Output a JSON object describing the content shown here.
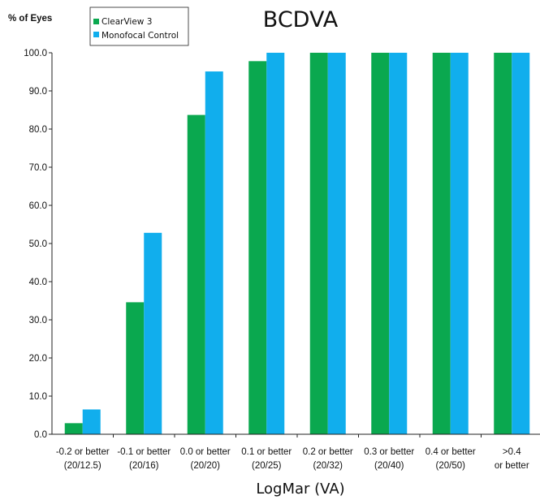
{
  "chart_data": {
    "type": "bar",
    "title": "BCDVA",
    "ylabel": "% of Eyes",
    "xlabel": "LogMar (VA)",
    "categories": [
      [
        "-0.2 or better",
        "(20/12.5)"
      ],
      [
        "-0.1 or better",
        "(20/16)"
      ],
      [
        "0.0 or better",
        "(20/20)"
      ],
      [
        "0.1 or better",
        "(20/25)"
      ],
      [
        "0.2 or better",
        "(20/32)"
      ],
      [
        "0.3 or better",
        "(20/40)"
      ],
      [
        "0.4 or better",
        "(20/50)"
      ],
      [
        ">0.4",
        "or better"
      ]
    ],
    "series": [
      {
        "name": "ClearView 3",
        "color": "#0aa84f",
        "values": [
          2.9,
          34.6,
          83.7,
          97.8,
          100.0,
          100.0,
          100.0,
          100.0
        ]
      },
      {
        "name": "Monofocal Control",
        "color": "#11aeed",
        "values": [
          6.5,
          52.8,
          95.1,
          100.0,
          100.0,
          100.0,
          100.0,
          100.0
        ]
      }
    ],
    "ylim": [
      0,
      100
    ],
    "yticks": [
      "0.0",
      "10.0",
      "20.0",
      "30.0",
      "40.0",
      "50.0",
      "60.0",
      "70.0",
      "80.0",
      "90.0",
      "100.0"
    ],
    "grid": false,
    "legend_position": "top-left"
  }
}
